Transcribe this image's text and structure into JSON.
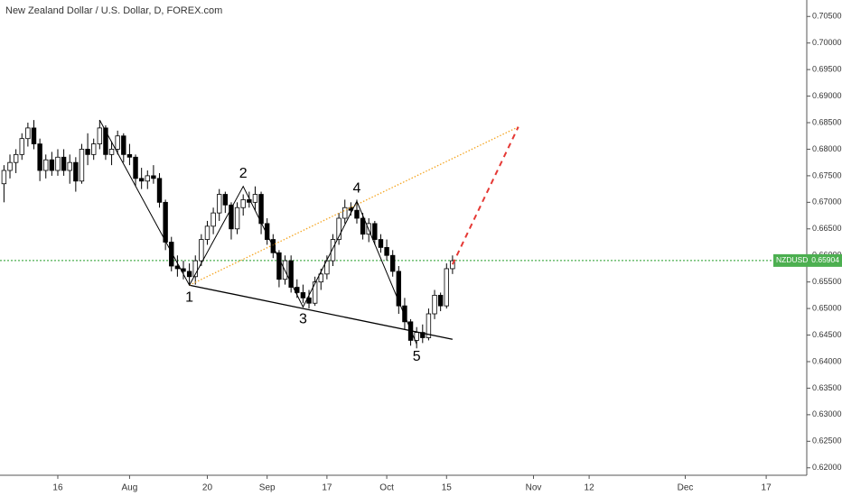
{
  "chart_data": {
    "type": "candlestick",
    "title": "New Zealand Dollar / U.S. Dollar, D, FOREX.com",
    "up_color": "#ffffff",
    "down_color": "#000000",
    "outline_color": "#000000",
    "x": [
      "Jul 3",
      "Jul 4",
      "Jul 5",
      "Jul 6",
      "Jul 9",
      "Jul 10",
      "Jul 11",
      "Jul 12",
      "Jul 13",
      "Jul 16",
      "Jul 17",
      "Jul 18",
      "Jul 19",
      "Jul 20",
      "Jul 23",
      "Jul 24",
      "Jul 25",
      "Jul 26",
      "Jul 27",
      "Jul 30",
      "Jul 31",
      "Aug 1",
      "Aug 2",
      "Aug 3",
      "Aug 6",
      "Aug 7",
      "Aug 8",
      "Aug 9",
      "Aug 10",
      "Aug 13",
      "Aug 14",
      "Aug 15",
      "Aug 16",
      "Aug 17",
      "Aug 20",
      "Aug 21",
      "Aug 22",
      "Aug 23",
      "Aug 24",
      "Aug 27",
      "Aug 28",
      "Aug 29",
      "Aug 30",
      "Aug 31",
      "Sep 3",
      "Sep 4",
      "Sep 5",
      "Sep 6",
      "Sep 7",
      "Sep 10",
      "Sep 11",
      "Sep 12",
      "Sep 13",
      "Sep 14",
      "Sep 17",
      "Sep 18",
      "Sep 19",
      "Sep 20",
      "Sep 21",
      "Sep 24",
      "Sep 25",
      "Sep 26",
      "Sep 27",
      "Sep 28",
      "Oct 1",
      "Oct 2",
      "Oct 3",
      "Oct 4",
      "Oct 5",
      "Oct 8",
      "Oct 9",
      "Oct 10",
      "Oct 11",
      "Oct 12",
      "Oct 15",
      "Oct 16"
    ],
    "open": [
      0.6735,
      0.676,
      0.6775,
      0.679,
      0.682,
      0.684,
      0.681,
      0.676,
      0.678,
      0.676,
      0.6785,
      0.676,
      0.6775,
      0.674,
      0.68,
      0.679,
      0.681,
      0.684,
      0.679,
      0.68,
      0.6825,
      0.679,
      0.6785,
      0.6745,
      0.674,
      0.675,
      0.6745,
      0.67,
      0.6625,
      0.658,
      0.6575,
      0.657,
      0.656,
      0.659,
      0.663,
      0.6655,
      0.668,
      0.6715,
      0.6695,
      0.665,
      0.669,
      0.6705,
      0.67,
      0.6715,
      0.666,
      0.663,
      0.6605,
      0.6555,
      0.659,
      0.654,
      0.653,
      0.652,
      0.651,
      0.655,
      0.6565,
      0.659,
      0.663,
      0.667,
      0.669,
      0.6685,
      0.667,
      0.664,
      0.666,
      0.663,
      0.6615,
      0.66,
      0.657,
      0.6505,
      0.6475,
      0.644,
      0.6455,
      0.6445,
      0.649,
      0.6525,
      0.6505,
      0.6575
    ],
    "high": [
      0.677,
      0.679,
      0.68,
      0.683,
      0.685,
      0.6855,
      0.682,
      0.679,
      0.6795,
      0.68,
      0.68,
      0.679,
      0.6785,
      0.681,
      0.683,
      0.682,
      0.6855,
      0.6845,
      0.6815,
      0.6835,
      0.683,
      0.681,
      0.679,
      0.6765,
      0.676,
      0.677,
      0.6755,
      0.6705,
      0.6635,
      0.66,
      0.659,
      0.6585,
      0.66,
      0.664,
      0.6665,
      0.669,
      0.6725,
      0.672,
      0.67,
      0.67,
      0.6715,
      0.672,
      0.673,
      0.672,
      0.667,
      0.664,
      0.661,
      0.66,
      0.66,
      0.6555,
      0.6545,
      0.6535,
      0.656,
      0.6575,
      0.66,
      0.664,
      0.668,
      0.6705,
      0.67,
      0.6705,
      0.668,
      0.667,
      0.6665,
      0.664,
      0.663,
      0.661,
      0.658,
      0.652,
      0.648,
      0.6465,
      0.647,
      0.65,
      0.6535,
      0.653,
      0.6585,
      0.66
    ],
    "low": [
      0.67,
      0.6745,
      0.6755,
      0.678,
      0.6805,
      0.68,
      0.674,
      0.6745,
      0.675,
      0.675,
      0.675,
      0.6735,
      0.672,
      0.6735,
      0.677,
      0.678,
      0.68,
      0.678,
      0.677,
      0.679,
      0.6775,
      0.677,
      0.673,
      0.6725,
      0.6725,
      0.6735,
      0.669,
      0.661,
      0.657,
      0.656,
      0.6555,
      0.6545,
      0.6545,
      0.658,
      0.662,
      0.664,
      0.6665,
      0.668,
      0.663,
      0.664,
      0.6675,
      0.669,
      0.6685,
      0.664,
      0.662,
      0.6595,
      0.654,
      0.6545,
      0.653,
      0.652,
      0.651,
      0.65,
      0.6505,
      0.6535,
      0.6555,
      0.658,
      0.662,
      0.666,
      0.6675,
      0.666,
      0.663,
      0.6625,
      0.662,
      0.6605,
      0.659,
      0.656,
      0.649,
      0.646,
      0.643,
      0.6425,
      0.6435,
      0.644,
      0.648,
      0.6495,
      0.65,
      0.6565
    ],
    "close": [
      0.676,
      0.6775,
      0.679,
      0.682,
      0.684,
      0.681,
      0.676,
      0.678,
      0.676,
      0.6785,
      0.676,
      0.6775,
      0.674,
      0.68,
      0.679,
      0.681,
      0.684,
      0.679,
      0.68,
      0.6825,
      0.679,
      0.6785,
      0.6745,
      0.674,
      0.675,
      0.6745,
      0.67,
      0.6625,
      0.658,
      0.6575,
      0.657,
      0.656,
      0.659,
      0.663,
      0.6655,
      0.668,
      0.6715,
      0.6695,
      0.665,
      0.669,
      0.6705,
      0.67,
      0.6715,
      0.666,
      0.663,
      0.6605,
      0.6555,
      0.659,
      0.654,
      0.653,
      0.652,
      0.651,
      0.655,
      0.6565,
      0.659,
      0.663,
      0.667,
      0.669,
      0.6685,
      0.667,
      0.664,
      0.666,
      0.663,
      0.6615,
      0.66,
      0.657,
      0.6505,
      0.6475,
      0.644,
      0.6455,
      0.6445,
      0.649,
      0.6525,
      0.6505,
      0.6575,
      0.659
    ],
    "ylim": [
      0.6186,
      0.7081
    ],
    "yticks": [
      {
        "value": 0.62,
        "label": "0.62000"
      },
      {
        "value": 0.625,
        "label": "0.62500"
      },
      {
        "value": 0.63,
        "label": "0.63000"
      },
      {
        "value": 0.635,
        "label": "0.63500"
      },
      {
        "value": 0.64,
        "label": "0.64000"
      },
      {
        "value": 0.645,
        "label": "0.64500"
      },
      {
        "value": 0.65,
        "label": "0.65000"
      },
      {
        "value": 0.655,
        "label": "0.65500"
      },
      {
        "value": 0.66,
        "label": "0.66000"
      },
      {
        "value": 0.665,
        "label": "0.66500"
      },
      {
        "value": 0.67,
        "label": "0.67000"
      },
      {
        "value": 0.675,
        "label": "0.67500"
      },
      {
        "value": 0.68,
        "label": "0.68000"
      },
      {
        "value": 0.685,
        "label": "0.68500"
      },
      {
        "value": 0.69,
        "label": "0.69000"
      },
      {
        "value": 0.695,
        "label": "0.69500"
      },
      {
        "value": 0.7,
        "label": "0.70000"
      },
      {
        "value": 0.705,
        "label": "0.70500"
      }
    ],
    "xticks": [
      {
        "value": "Jul 16",
        "label": "16"
      },
      {
        "value": "Aug 1",
        "label": "Aug"
      },
      {
        "value": "Aug 20",
        "label": "20"
      },
      {
        "value": "Sep 3",
        "label": "Sep"
      },
      {
        "value": "Sep 17",
        "label": "17"
      },
      {
        "value": "Oct 1",
        "label": "Oct"
      },
      {
        "value": "Oct 15",
        "label": "15"
      },
      {
        "value": "Nov 1",
        "label": "Nov"
      },
      {
        "value": "Nov 12",
        "label": "12"
      },
      {
        "value": "Dec 1",
        "label": "Dec"
      },
      {
        "value": "Dec 17",
        "label": "17"
      }
    ],
    "price_line": {
      "symbol": "NZDUSD",
      "value": 0.65904,
      "color": "#4caf50"
    },
    "wave": {
      "color": "#000000",
      "points": [
        {
          "x": "Jul 25",
          "y": 0.6855
        },
        {
          "x": "Aug 15",
          "y": 0.6544,
          "label": "1"
        },
        {
          "x": "Aug 28",
          "y": 0.673,
          "label": "2"
        },
        {
          "x": "Sep 11",
          "y": 0.6503,
          "label": "3"
        },
        {
          "x": "Sep 24",
          "y": 0.6702,
          "label": "4"
        },
        {
          "x": "Oct 8",
          "y": 0.6433,
          "label": "5"
        }
      ]
    },
    "lines": [
      {
        "color": "#000000",
        "style": "solid",
        "x": [
          "Aug 15",
          "Oct 16"
        ],
        "y": [
          0.6544,
          0.6442
        ]
      },
      {
        "color": "#f5a623",
        "style": "dotted",
        "x": [
          "Aug 15",
          "Oct 29"
        ],
        "y": [
          0.6544,
          0.6842
        ]
      },
      {
        "color": "#e53935",
        "style": "dashed",
        "x": [
          "Oct 16",
          "Oct 29"
        ],
        "y": [
          0.6583,
          0.6842
        ]
      }
    ]
  }
}
